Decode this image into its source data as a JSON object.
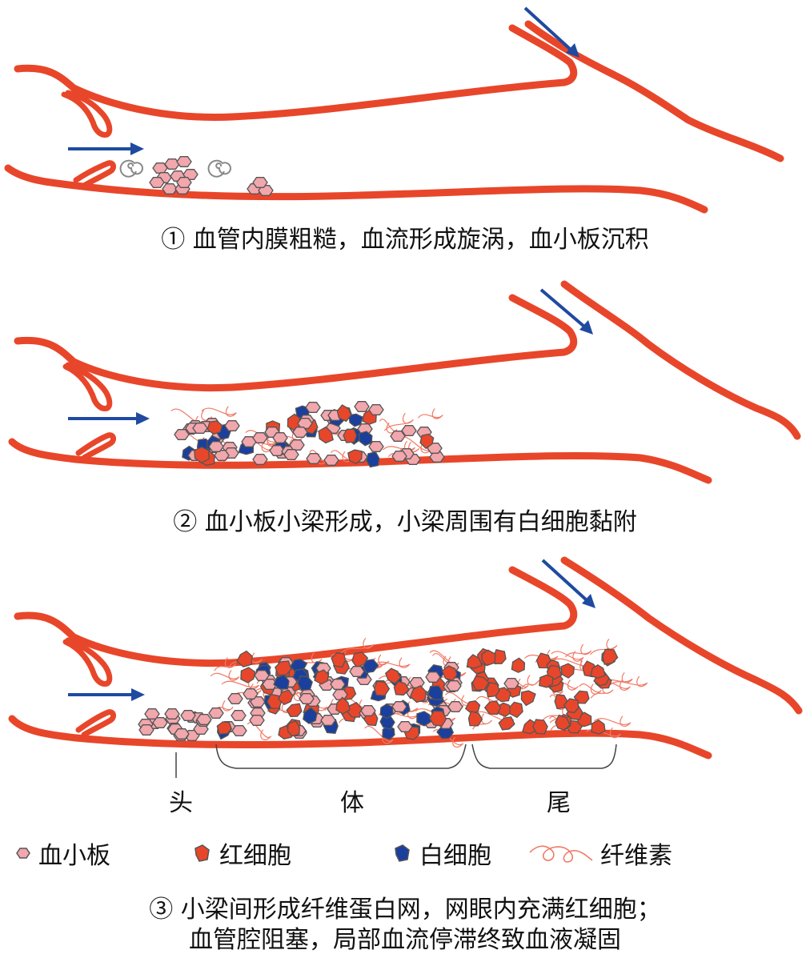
{
  "stages": [
    {
      "caption": "① 血管内膜粗糙，血流形成旋涡，血小板沉积"
    },
    {
      "caption": "② 血小板小梁形成，小梁周围有白细胞黏附"
    },
    {
      "caption_line1": "③ 小梁间形成纤维蛋白网，网眼内充满红细胞；",
      "caption_line2": "血管腔阻塞，局部血流停滞终致血液凝固",
      "segments": {
        "head": "头",
        "body": "体",
        "tail": "尾"
      }
    }
  ],
  "legend": {
    "platelet": "血小板",
    "red_cell": "红细胞",
    "white_cell": "白细胞",
    "fibrin": "纤维素"
  },
  "colors": {
    "vessel": "#e8462a",
    "arrow": "#1f4aa0",
    "platelet": "#f2a7ad",
    "red_cell": "#e8462a",
    "white_cell": "#1b3f9c",
    "fibrin": "#f07a66",
    "cell_outline": "#555555"
  }
}
